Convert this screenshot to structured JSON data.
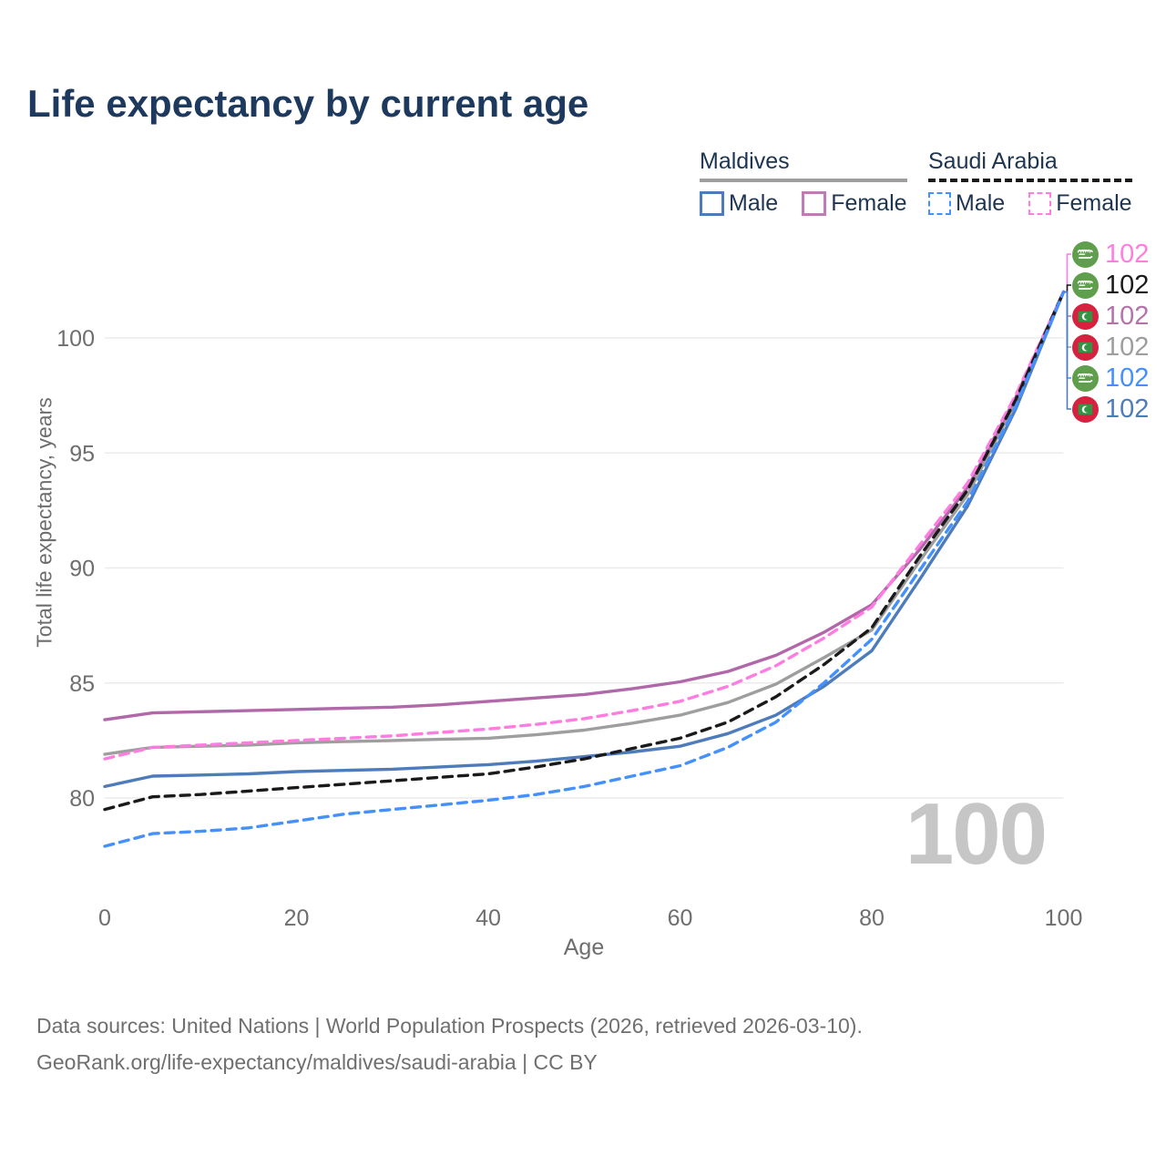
{
  "title": "Life expectancy by current age",
  "watermark": "100",
  "legend": {
    "groups": [
      {
        "country": "Maldives",
        "underline_style": "solid",
        "underline_color": "#9e9e9e",
        "items": [
          {
            "label": "Male",
            "color": "#4e7cbb",
            "dashed": false
          },
          {
            "label": "Female",
            "color": "#bd7cb5",
            "dashed": false
          }
        ]
      },
      {
        "country": "Saudi Arabia",
        "underline_style": "dashed",
        "underline_color": "#1a1a1a",
        "items": [
          {
            "label": "Male",
            "color": "#4490fc",
            "dashed": true
          },
          {
            "label": "Female",
            "color": "#ff7ce0",
            "dashed": true
          }
        ]
      }
    ]
  },
  "chart_data": {
    "type": "line",
    "title": "Life expectancy by current age",
    "xlabel": "Age",
    "ylabel": "Total life expectancy, years",
    "x_ticks": [
      0,
      20,
      40,
      60,
      80,
      100
    ],
    "y_ticks": [
      100,
      95,
      90,
      85,
      80
    ],
    "xlim": [
      0,
      100
    ],
    "ylim": [
      77.5,
      103
    ],
    "grid": "horizontal",
    "legend_position": "top-right",
    "x": [
      0,
      5,
      10,
      15,
      20,
      25,
      30,
      35,
      40,
      45,
      50,
      55,
      60,
      65,
      70,
      75,
      80,
      85,
      90,
      95,
      100
    ],
    "series": [
      {
        "id": "maldives-both",
        "name": "Maldives Both sexes",
        "country": "Maldives",
        "color": "#9e9e9e",
        "dashed": false,
        "values": [
          81.9,
          82.2,
          82.25,
          82.3,
          82.4,
          82.45,
          82.5,
          82.55,
          82.6,
          82.75,
          82.95,
          83.25,
          83.6,
          84.15,
          84.95,
          86.1,
          87.3,
          90.3,
          93.2,
          97.2,
          102
        ]
      },
      {
        "id": "maldives-female",
        "name": "Maldives Female",
        "country": "Maldives",
        "color": "#b168a9",
        "dashed": false,
        "values": [
          83.4,
          83.7,
          83.75,
          83.8,
          83.85,
          83.9,
          83.95,
          84.05,
          84.2,
          84.35,
          84.5,
          84.75,
          85.05,
          85.5,
          86.2,
          87.2,
          88.4,
          90.8,
          93.5,
          97.4,
          102
        ]
      },
      {
        "id": "maldives-male",
        "name": "Maldives Male",
        "country": "Maldives",
        "color": "#4e7cbb",
        "dashed": false,
        "values": [
          80.5,
          80.95,
          81.0,
          81.05,
          81.15,
          81.2,
          81.25,
          81.35,
          81.45,
          81.6,
          81.8,
          82.0,
          82.25,
          82.8,
          83.6,
          84.85,
          86.4,
          89.5,
          92.7,
          96.9,
          102
        ]
      },
      {
        "id": "saudi-female",
        "name": "Saudi Arabia Female",
        "country": "Saudi Arabia",
        "color": "#ff7ce0",
        "dashed": true,
        "values": [
          81.7,
          82.2,
          82.3,
          82.4,
          82.5,
          82.6,
          82.7,
          82.85,
          83.0,
          83.2,
          83.45,
          83.8,
          84.2,
          84.85,
          85.75,
          86.95,
          88.3,
          91.0,
          93.7,
          97.5,
          102
        ]
      },
      {
        "id": "saudi-both",
        "name": "Saudi Arabia Both sexes",
        "country": "Saudi Arabia",
        "color": "#1a1a1a",
        "dashed": true,
        "values": [
          79.5,
          80.05,
          80.15,
          80.3,
          80.45,
          80.6,
          80.75,
          80.9,
          81.05,
          81.35,
          81.7,
          82.15,
          82.6,
          83.3,
          84.4,
          85.8,
          87.4,
          90.5,
          93.4,
          97.3,
          102
        ]
      },
      {
        "id": "saudi-male",
        "name": "Saudi Arabia Male",
        "country": "Saudi Arabia",
        "color": "#4490fc",
        "dashed": true,
        "values": [
          77.9,
          78.45,
          78.55,
          78.7,
          79.0,
          79.3,
          79.5,
          79.7,
          79.9,
          80.15,
          80.5,
          80.95,
          81.4,
          82.2,
          83.3,
          85.0,
          86.9,
          89.9,
          92.9,
          97.0,
          102
        ]
      }
    ],
    "end_labels": [
      {
        "series_id": "saudi-female",
        "flag": "saudi-arabia",
        "value": "102",
        "color": "#ff7ce0"
      },
      {
        "series_id": "saudi-both",
        "flag": "saudi-arabia",
        "value": "102",
        "color": "#1a1a1a"
      },
      {
        "series_id": "maldives-female",
        "flag": "maldives",
        "value": "102",
        "color": "#b573ae"
      },
      {
        "series_id": "maldives-both",
        "flag": "maldives",
        "value": "102",
        "color": "#9e9e9e"
      },
      {
        "series_id": "saudi-male",
        "flag": "saudi-arabia",
        "value": "102",
        "color": "#4490fc"
      },
      {
        "series_id": "maldives-male",
        "flag": "maldives",
        "value": "102",
        "color": "#4e7cbb"
      }
    ]
  },
  "footer": {
    "line1": "Data sources: United Nations | World Population Prospects (2026, retrieved 2026-03-10).",
    "line2": "GeoRank.org/life-expectancy/maldives/saudi-arabia | CC BY"
  }
}
